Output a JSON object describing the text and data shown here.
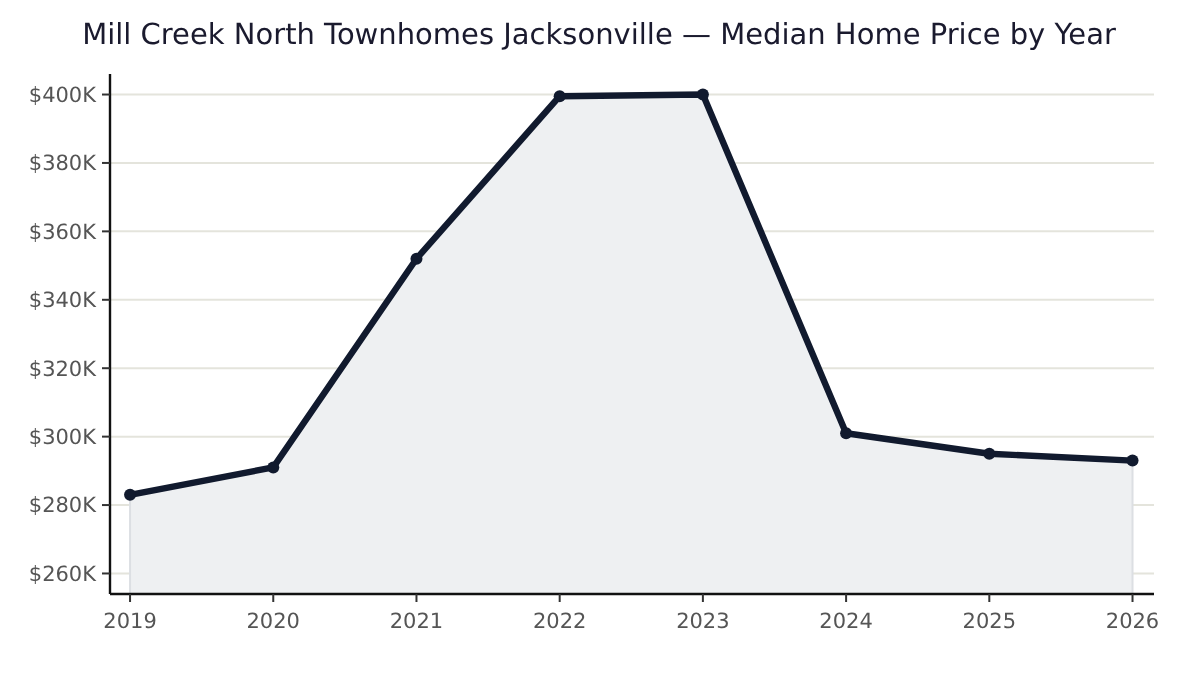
{
  "chart_data": {
    "type": "area",
    "title": "Mill Creek North Townhomes Jacksonville — Median Home Price by Year",
    "x": [
      2019,
      2020,
      2021,
      2022,
      2023,
      2024,
      2025,
      2026
    ],
    "series": [
      {
        "color": "#111a2e",
        "values": [
          283000,
          291000,
          352000,
          399500,
          400000,
          301000,
          295000,
          293000
        ]
      }
    ],
    "xlim": [
      2018.86,
      2026.15
    ],
    "xticks": [
      2019,
      2020,
      2021,
      2022,
      2023,
      2024,
      2025,
      2026
    ],
    "ylim": [
      254000,
      406000
    ],
    "yticks": [
      {
        "value": 260000,
        "label": "$260K"
      },
      {
        "value": 280000,
        "label": "$280K"
      },
      {
        "value": 300000,
        "label": "$300K"
      },
      {
        "value": 320000,
        "label": "$320K"
      },
      {
        "value": 340000,
        "label": "$340K"
      },
      {
        "value": 360000,
        "label": "$360K"
      },
      {
        "value": 380000,
        "label": "$380K"
      },
      {
        "value": 400000,
        "label": "$400K"
      }
    ],
    "grid": "y",
    "marker": "circle",
    "line_style": "solid"
  }
}
